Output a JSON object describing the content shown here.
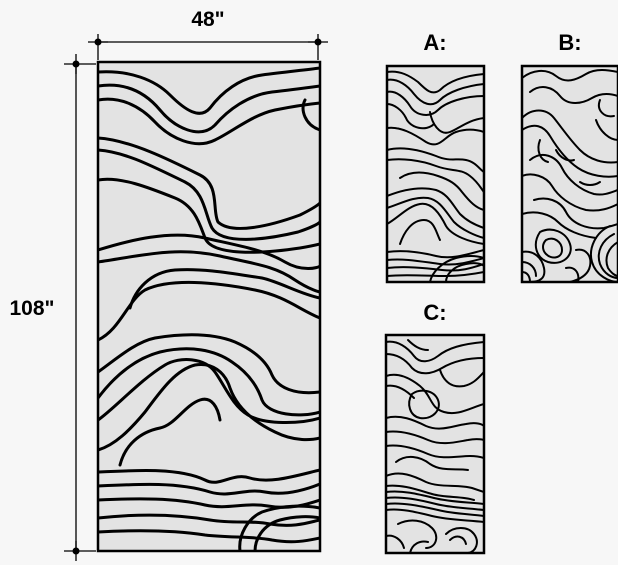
{
  "dimensions": {
    "width_label": "48\"",
    "height_label": "108\""
  },
  "variants": [
    {
      "id": "A",
      "label": "A:"
    },
    {
      "id": "B",
      "label": "B:"
    },
    {
      "id": "C",
      "label": "C:"
    }
  ],
  "colors": {
    "panel_fill": "#e3e3e3",
    "stroke": "#000000",
    "background": "#f7f7f7"
  }
}
